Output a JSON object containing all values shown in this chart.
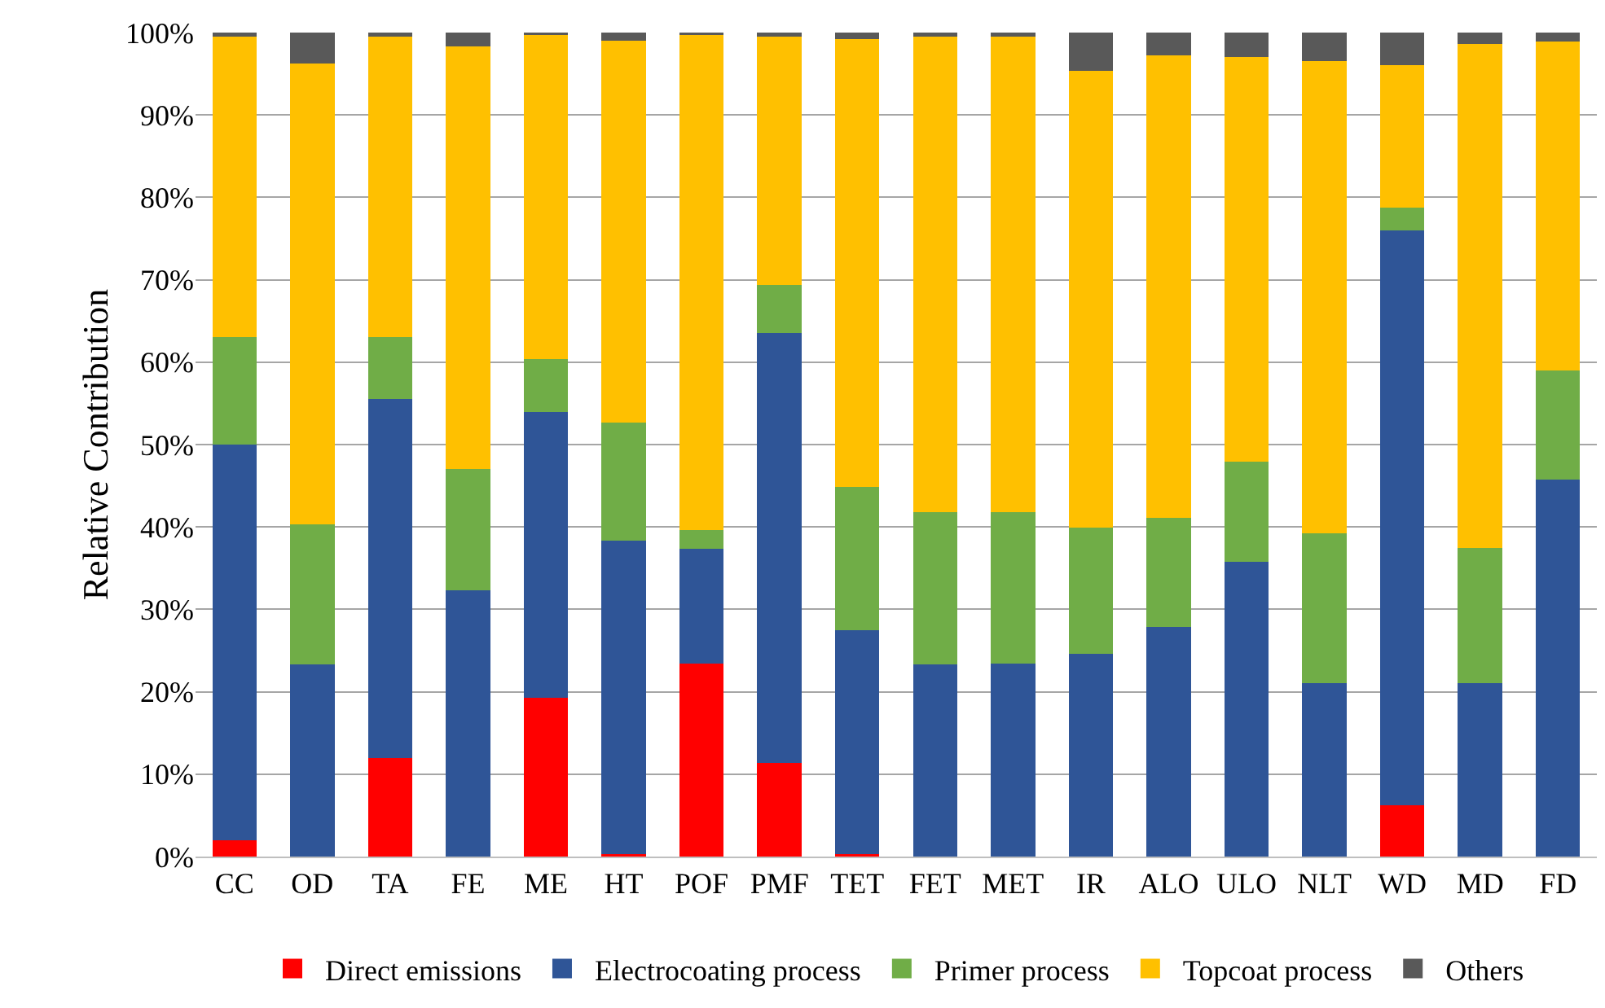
{
  "chart_data": {
    "type": "bar",
    "stacked": true,
    "ylabel": "Relative Contribution",
    "categories": [
      "CC",
      "OD",
      "TA",
      "FE",
      "ME",
      "HT",
      "POF",
      "PMF",
      "TET",
      "FET",
      "MET",
      "IR",
      "ALO",
      "ULO",
      "NLT",
      "WD",
      "MD",
      "FD"
    ],
    "series": [
      {
        "name": "Direct emissions",
        "color": "#ff0000",
        "values": [
          2,
          0,
          12,
          0,
          19.3,
          0.3,
          23.4,
          11.4,
          0.3,
          0,
          0,
          0,
          0,
          0,
          0,
          6.2,
          0,
          0
        ]
      },
      {
        "name": "Electrocoating process",
        "color": "#2f5597",
        "values": [
          48,
          23.3,
          43.5,
          32.3,
          34.7,
          38,
          14,
          52.1,
          27.2,
          23.3,
          23.4,
          24.6,
          27.9,
          35.8,
          21,
          69.8,
          21,
          45.8
        ]
      },
      {
        "name": "Primer process",
        "color": "#70ad47",
        "values": [
          13,
          17,
          7.5,
          14.7,
          6.4,
          14.4,
          2.2,
          5.9,
          17.4,
          18.5,
          18.4,
          15.3,
          13.2,
          12.1,
          18.2,
          2.8,
          16.5,
          13.2
        ]
      },
      {
        "name": "Topcoat process",
        "color": "#ffc000",
        "values": [
          36.5,
          55.9,
          36.5,
          51.3,
          39.3,
          46.3,
          60.1,
          30.1,
          54.3,
          57.7,
          57.7,
          55.5,
          56.1,
          49.1,
          57.3,
          17.2,
          61.1,
          39.9
        ]
      },
      {
        "name": "Others",
        "color": "#595959",
        "values": [
          0.5,
          3.8,
          0.5,
          1.7,
          0.3,
          1,
          0.3,
          0.5,
          0.8,
          0.5,
          0.5,
          4.6,
          2.8,
          3,
          3.5,
          4,
          1.4,
          1.1
        ]
      }
    ],
    "ylim": [
      0,
      100
    ],
    "yticks": [
      {
        "value": 0,
        "label": "0%"
      },
      {
        "value": 10,
        "label": "10%"
      },
      {
        "value": 20,
        "label": "20%"
      },
      {
        "value": 30,
        "label": "30%"
      },
      {
        "value": 40,
        "label": "40%"
      },
      {
        "value": 50,
        "label": "50%"
      },
      {
        "value": 60,
        "label": "60%"
      },
      {
        "value": 70,
        "label": "70%"
      },
      {
        "value": 80,
        "label": "80%"
      },
      {
        "value": 90,
        "label": "90%"
      },
      {
        "value": 100,
        "label": "100%"
      }
    ],
    "grid": "y",
    "legend": "bottom"
  }
}
